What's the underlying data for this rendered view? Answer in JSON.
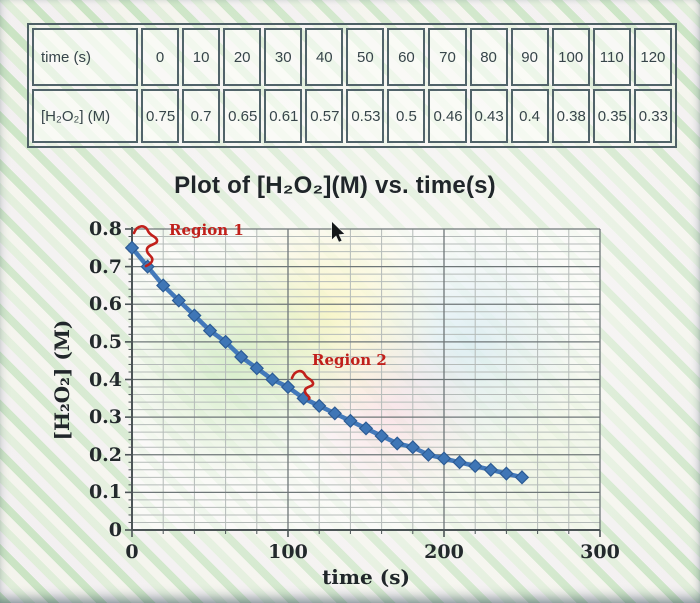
{
  "table": {
    "row1_header": "time (s)",
    "row2_header": "[H₂O₂] (M)",
    "times": [
      "0",
      "10",
      "20",
      "30",
      "40",
      "50",
      "60",
      "70",
      "80",
      "90",
      "100",
      "110",
      "120"
    ],
    "concentrations": [
      "0.75",
      "0.7",
      "0.65",
      "0.61",
      "0.57",
      "0.53",
      "0.5",
      "0.46",
      "0.43",
      "0.4",
      "0.38",
      "0.35",
      "0.33"
    ]
  },
  "chart_data": {
    "type": "line",
    "title": "Plot of [H₂O₂](M) vs. time(s)",
    "xlabel": "time (s)",
    "ylabel": "[H₂O₂] (M)",
    "x": [
      0,
      10,
      20,
      30,
      40,
      50,
      60,
      70,
      80,
      90,
      100,
      110,
      120,
      130,
      140,
      150,
      160,
      170,
      180,
      190,
      200,
      210,
      220,
      230,
      240,
      250
    ],
    "values": [
      0.75,
      0.7,
      0.65,
      0.61,
      0.57,
      0.53,
      0.5,
      0.46,
      0.43,
      0.4,
      0.38,
      0.35,
      0.33,
      0.31,
      0.29,
      0.27,
      0.25,
      0.23,
      0.22,
      0.2,
      0.19,
      0.18,
      0.17,
      0.16,
      0.15,
      0.14
    ],
    "xlim": [
      0,
      300
    ],
    "ylim": [
      0,
      0.8
    ],
    "xticks": [
      "0",
      "100",
      "200",
      "300"
    ],
    "yticks": [
      "0",
      "0.1",
      "0.2",
      "0.3",
      "0.4",
      "0.5",
      "0.6",
      "0.7",
      "0.8"
    ],
    "x_minor_step": 20,
    "y_minor_step": 0.02,
    "grid": "major+minor",
    "legend": "none",
    "marker": "diamond",
    "annotations": [
      {
        "label": "Region 1"
      },
      {
        "label": "Region 2"
      }
    ]
  },
  "colors": {
    "series_line": "#4379ba",
    "marker_fill": "#3f76b6",
    "marker_edge": "#2d5c95",
    "grid_major": "#6f7779",
    "grid_minor": "#b5bbb9",
    "axis": "#4c5457",
    "annotation_red": "#c1201b",
    "text_dark": "#23292c",
    "table_border": "#51636a"
  },
  "icons": {
    "mouse_cursor": "arrow-pointer",
    "region_braces": "hand-drawn-squiggle-brace"
  }
}
